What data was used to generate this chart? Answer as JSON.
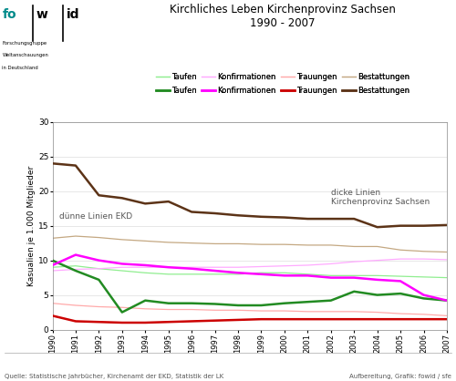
{
  "title": "Kirchliches Leben Kirchenprovinz Sachsen\n1990 - 2007",
  "ylabel": "Kasualien je 1.000 Mitglieder",
  "source_left": "Quelle: Statistische Jahrbücher, Kirchenamt der EKD, Statistik der LK",
  "source_right": "Aufbereitung, Grafik: fowid / sfe",
  "years": [
    1990,
    1991,
    1992,
    1993,
    1994,
    1995,
    1996,
    1997,
    1998,
    1999,
    2000,
    2001,
    2002,
    2003,
    2004,
    2005,
    2006,
    2007
  ],
  "ecd_taufen": [
    9.0,
    9.2,
    8.8,
    8.5,
    8.2,
    8.0,
    8.0,
    8.0,
    8.0,
    8.2,
    8.2,
    8.0,
    7.8,
    7.8,
    7.8,
    7.7,
    7.6,
    7.5
  ],
  "ecd_konfirmationen": [
    8.5,
    8.7,
    8.8,
    9.0,
    9.0,
    9.0,
    9.0,
    9.0,
    9.0,
    9.1,
    9.2,
    9.3,
    9.5,
    9.8,
    10.0,
    10.2,
    10.2,
    10.1
  ],
  "ecd_trauungen": [
    3.8,
    3.5,
    3.3,
    3.2,
    3.0,
    2.9,
    2.9,
    2.8,
    2.8,
    2.7,
    2.7,
    2.6,
    2.6,
    2.6,
    2.5,
    2.3,
    2.2,
    2.0
  ],
  "ecd_bestattungen": [
    13.2,
    13.5,
    13.3,
    13.0,
    12.8,
    12.6,
    12.5,
    12.4,
    12.4,
    12.3,
    12.3,
    12.2,
    12.2,
    12.0,
    12.0,
    11.5,
    11.3,
    11.2
  ],
  "kps_taufen": [
    10.0,
    8.5,
    7.2,
    2.5,
    4.2,
    3.8,
    3.8,
    3.7,
    3.5,
    3.5,
    3.8,
    4.0,
    4.2,
    5.5,
    5.0,
    5.2,
    4.5,
    4.2
  ],
  "kps_konfirmationen": [
    9.3,
    10.8,
    10.0,
    9.5,
    9.3,
    9.0,
    8.8,
    8.5,
    8.2,
    8.0,
    7.8,
    7.8,
    7.5,
    7.5,
    7.2,
    7.0,
    5.0,
    4.2
  ],
  "kps_trauungen": [
    2.0,
    1.2,
    1.1,
    1.0,
    1.0,
    1.1,
    1.2,
    1.3,
    1.4,
    1.5,
    1.5,
    1.5,
    1.5,
    1.5,
    1.5,
    1.5,
    1.5,
    1.5
  ],
  "kps_bestattungen": [
    24.0,
    23.7,
    19.4,
    19.0,
    18.2,
    18.5,
    17.0,
    16.8,
    16.5,
    16.3,
    16.2,
    16.0,
    16.0,
    16.0,
    14.8,
    15.0,
    15.0,
    15.1
  ],
  "color_taufen": "#228B22",
  "color_konfirmationen": "#ff00ff",
  "color_trauungen": "#cc0000",
  "color_bestattungen": "#5C3317",
  "color_taufen_thin": "#90EE90",
  "color_konfirmationen_thin": "#ffaaff",
  "color_trauungen_thin": "#ffaaaa",
  "color_bestattungen_thin": "#c4a882",
  "annotation_left": "dünne Linien EKD",
  "annotation_right": "dicke Linien\nKirchenprovinz Sachsen",
  "ylim": [
    0,
    30
  ],
  "yticks": [
    0,
    5,
    10,
    15,
    20,
    25,
    30
  ]
}
